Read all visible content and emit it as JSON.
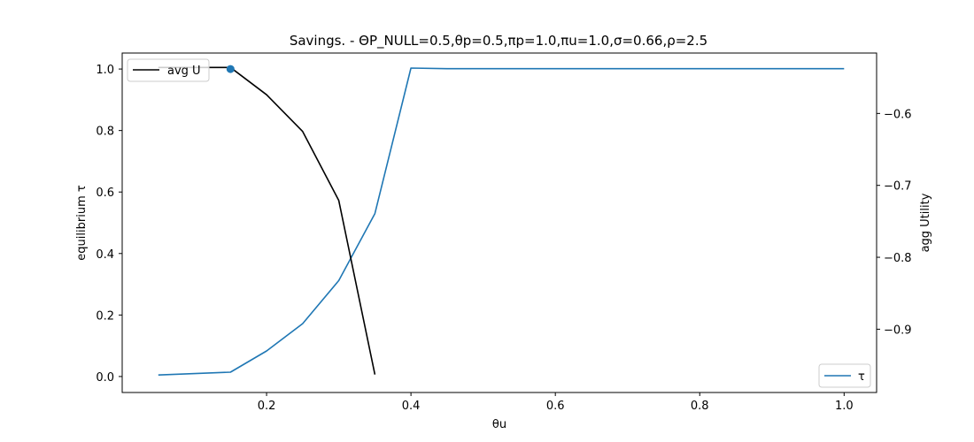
{
  "chart_data": {
    "type": "line",
    "title": "Savings. - ΘP_NULL=0.5,θp=0.5,πp=1.0,πu=1.0,σ=0.66,ρ=2.5",
    "xlabel": "θu",
    "ylabel_left": "equilibrium τ",
    "ylabel_right": "agg Utility",
    "xlim": [
      0.0,
      1.045
    ],
    "ylim_left": [
      -0.052,
      1.052
    ],
    "ylim_right": [
      -0.988,
      -0.516
    ],
    "x_ticks": [
      {
        "value": 0.2,
        "label": "0.2"
      },
      {
        "value": 0.4,
        "label": "0.4"
      },
      {
        "value": 0.6,
        "label": "0.6"
      },
      {
        "value": 0.8,
        "label": "0.8"
      },
      {
        "value": 1.0,
        "label": "1.0"
      }
    ],
    "y_ticks_left": [
      {
        "value": 0.0,
        "label": "0.0"
      },
      {
        "value": 0.2,
        "label": "0.2"
      },
      {
        "value": 0.4,
        "label": "0.4"
      },
      {
        "value": 0.6,
        "label": "0.6"
      },
      {
        "value": 0.8,
        "label": "0.8"
      },
      {
        "value": 1.0,
        "label": "1.0"
      }
    ],
    "y_ticks_right": [
      {
        "value": -0.6,
        "label": "−0.6"
      },
      {
        "value": -0.7,
        "label": "−0.7"
      },
      {
        "value": -0.8,
        "label": "−0.8"
      },
      {
        "value": -0.9,
        "label": "−0.9"
      }
    ],
    "series": [
      {
        "name": "τ",
        "axis": "left",
        "color": "#1f77b4",
        "x": [
          0.05,
          0.15,
          0.2,
          0.25,
          0.3,
          0.35,
          0.4,
          0.45,
          0.5,
          0.55,
          0.6,
          0.65,
          0.7,
          0.75,
          0.8,
          0.85,
          0.9,
          0.95,
          1.0
        ],
        "y": [
          0.005,
          0.014,
          0.083,
          0.172,
          0.312,
          0.53,
          1.003,
          1.001,
          1.001,
          1.001,
          1.001,
          1.001,
          1.001,
          1.001,
          1.001,
          1.001,
          1.001,
          1.001,
          1.001
        ]
      },
      {
        "name": "avg U",
        "axis": "right",
        "color": "#000000",
        "x": [
          0.05,
          0.15,
          0.2,
          0.25,
          0.3,
          0.35
        ],
        "y": [
          -0.536,
          -0.536,
          -0.574,
          -0.625,
          -0.721,
          -0.963
        ]
      }
    ],
    "marker": {
      "x": 0.15,
      "y": 1.0,
      "axis": "left",
      "color": "#1f77b4"
    },
    "legends": [
      {
        "position": "upper-left",
        "label": "avg U",
        "color": "#000000"
      },
      {
        "position": "lower-right",
        "label": "τ",
        "color": "#1f77b4"
      }
    ]
  }
}
